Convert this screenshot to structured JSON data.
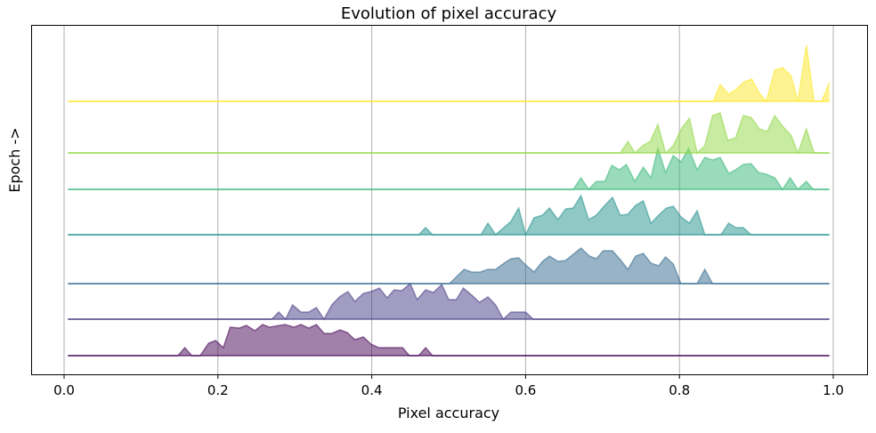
{
  "chart_data": {
    "type": "area",
    "subtype": "ridgeline",
    "title": "Evolution of pixel accuracy",
    "xlabel": "Pixel accuracy",
    "ylabel": "Epoch ->",
    "xlim": [
      -0.043,
      1.045
    ],
    "x_ticks": [
      "0.0",
      "0.2",
      "0.4",
      "0.6",
      "0.8",
      "1.0"
    ],
    "x_tick_values": [
      0,
      0.2,
      0.4,
      0.6,
      0.8,
      1.0
    ],
    "grid": "vertical",
    "y_ticks": "none",
    "colormap": "viridis",
    "fill_alpha": 0.5,
    "baseline_range": [
      0.005,
      0.995
    ],
    "series": [
      {
        "color": "#440154",
        "points": [
          [
            0.148,
            0
          ],
          [
            0.157,
            9
          ],
          [
            0.166,
            0
          ],
          [
            0.177,
            0
          ],
          [
            0.188,
            14
          ],
          [
            0.197,
            17
          ],
          [
            0.207,
            9
          ],
          [
            0.216,
            32
          ],
          [
            0.228,
            31
          ],
          [
            0.237,
            34
          ],
          [
            0.248,
            28
          ],
          [
            0.258,
            35
          ],
          [
            0.267,
            32
          ],
          [
            0.287,
            35
          ],
          [
            0.299,
            32
          ],
          [
            0.308,
            35
          ],
          [
            0.318,
            31
          ],
          [
            0.328,
            35
          ],
          [
            0.338,
            25
          ],
          [
            0.348,
            25
          ],
          [
            0.359,
            29
          ],
          [
            0.368,
            26
          ],
          [
            0.378,
            18
          ],
          [
            0.389,
            21
          ],
          [
            0.399,
            13
          ],
          [
            0.409,
            9
          ],
          [
            0.44,
            9
          ],
          [
            0.449,
            0
          ],
          [
            0.461,
            0
          ],
          [
            0.47,
            9
          ],
          [
            0.479,
            0
          ]
        ]
      },
      {
        "color": "#443983",
        "points": [
          [
            0.27,
            0
          ],
          [
            0.279,
            8
          ],
          [
            0.288,
            0
          ],
          [
            0.297,
            16
          ],
          [
            0.308,
            8
          ],
          [
            0.318,
            8
          ],
          [
            0.328,
            13
          ],
          [
            0.338,
            0
          ],
          [
            0.348,
            16
          ],
          [
            0.358,
            25
          ],
          [
            0.369,
            31
          ],
          [
            0.378,
            20
          ],
          [
            0.389,
            29
          ],
          [
            0.399,
            31
          ],
          [
            0.41,
            35
          ],
          [
            0.42,
            24
          ],
          [
            0.429,
            33
          ],
          [
            0.439,
            32
          ],
          [
            0.45,
            40
          ],
          [
            0.459,
            22
          ],
          [
            0.47,
            33
          ],
          [
            0.48,
            30
          ],
          [
            0.491,
            39
          ],
          [
            0.5,
            22
          ],
          [
            0.51,
            22
          ],
          [
            0.519,
            35
          ],
          [
            0.53,
            27
          ],
          [
            0.54,
            19
          ],
          [
            0.551,
            25
          ],
          [
            0.561,
            16
          ],
          [
            0.571,
            0
          ],
          [
            0.581,
            8
          ],
          [
            0.6,
            8
          ],
          [
            0.61,
            0
          ]
        ]
      },
      {
        "color": "#31688e",
        "points": [
          [
            0.501,
            0
          ],
          [
            0.52,
            16
          ],
          [
            0.53,
            13
          ],
          [
            0.541,
            13
          ],
          [
            0.551,
            16
          ],
          [
            0.561,
            16
          ],
          [
            0.572,
            23
          ],
          [
            0.581,
            28
          ],
          [
            0.591,
            29
          ],
          [
            0.6,
            21
          ],
          [
            0.611,
            13
          ],
          [
            0.622,
            25
          ],
          [
            0.631,
            31
          ],
          [
            0.642,
            25
          ],
          [
            0.652,
            26
          ],
          [
            0.662,
            33
          ],
          [
            0.672,
            40
          ],
          [
            0.683,
            31
          ],
          [
            0.692,
            28
          ],
          [
            0.701,
            37
          ],
          [
            0.713,
            37
          ],
          [
            0.723,
            27
          ],
          [
            0.733,
            16
          ],
          [
            0.743,
            31
          ],
          [
            0.753,
            34
          ],
          [
            0.763,
            23
          ],
          [
            0.773,
            20
          ],
          [
            0.782,
            30
          ],
          [
            0.792,
            22
          ],
          [
            0.802,
            0
          ],
          [
            0.823,
            0
          ],
          [
            0.833,
            16
          ],
          [
            0.843,
            0
          ]
        ]
      },
      {
        "color": "#21918c",
        "points": [
          [
            0.461,
            0
          ],
          [
            0.47,
            8
          ],
          [
            0.479,
            0
          ],
          [
            0.542,
            0
          ],
          [
            0.551,
            13
          ],
          [
            0.561,
            0
          ],
          [
            0.581,
            15
          ],
          [
            0.591,
            30
          ],
          [
            0.6,
            0
          ],
          [
            0.611,
            19
          ],
          [
            0.622,
            22
          ],
          [
            0.631,
            30
          ],
          [
            0.642,
            17
          ],
          [
            0.652,
            29
          ],
          [
            0.662,
            30
          ],
          [
            0.672,
            44
          ],
          [
            0.682,
            17
          ],
          [
            0.692,
            22
          ],
          [
            0.702,
            32
          ],
          [
            0.713,
            42
          ],
          [
            0.723,
            22
          ],
          [
            0.733,
            23
          ],
          [
            0.743,
            33
          ],
          [
            0.753,
            38
          ],
          [
            0.763,
            13
          ],
          [
            0.773,
            22
          ],
          [
            0.783,
            30
          ],
          [
            0.792,
            32
          ],
          [
            0.802,
            20
          ],
          [
            0.813,
            13
          ],
          [
            0.823,
            27
          ],
          [
            0.833,
            0
          ],
          [
            0.854,
            0
          ],
          [
            0.864,
            13
          ],
          [
            0.873,
            8
          ],
          [
            0.883,
            8
          ],
          [
            0.893,
            0
          ]
        ]
      },
      {
        "color": "#35b779",
        "points": [
          [
            0.662,
            0
          ],
          [
            0.672,
            13
          ],
          [
            0.682,
            0
          ],
          [
            0.692,
            9
          ],
          [
            0.703,
            9
          ],
          [
            0.712,
            27
          ],
          [
            0.722,
            22
          ],
          [
            0.731,
            28
          ],
          [
            0.742,
            9
          ],
          [
            0.753,
            25
          ],
          [
            0.763,
            13
          ],
          [
            0.772,
            46
          ],
          [
            0.782,
            19
          ],
          [
            0.792,
            38
          ],
          [
            0.802,
            31
          ],
          [
            0.812,
            46
          ],
          [
            0.823,
            22
          ],
          [
            0.833,
            36
          ],
          [
            0.843,
            33
          ],
          [
            0.853,
            36
          ],
          [
            0.864,
            18
          ],
          [
            0.873,
            22
          ],
          [
            0.883,
            28
          ],
          [
            0.893,
            29
          ],
          [
            0.903,
            19
          ],
          [
            0.913,
            17
          ],
          [
            0.924,
            13
          ],
          [
            0.934,
            0
          ],
          [
            0.944,
            13
          ],
          [
            0.954,
            0
          ],
          [
            0.965,
            9
          ],
          [
            0.974,
            0
          ]
        ]
      },
      {
        "color": "#90d743",
        "points": [
          [
            0.723,
            0
          ],
          [
            0.733,
            13
          ],
          [
            0.742,
            0
          ],
          [
            0.752,
            8
          ],
          [
            0.762,
            13
          ],
          [
            0.772,
            32
          ],
          [
            0.782,
            0
          ],
          [
            0.792,
            8
          ],
          [
            0.803,
            28
          ],
          [
            0.813,
            39
          ],
          [
            0.823,
            0
          ],
          [
            0.833,
            8
          ],
          [
            0.843,
            42
          ],
          [
            0.853,
            45
          ],
          [
            0.863,
            14
          ],
          [
            0.873,
            17
          ],
          [
            0.883,
            42
          ],
          [
            0.893,
            40
          ],
          [
            0.904,
            27
          ],
          [
            0.914,
            24
          ],
          [
            0.924,
            42
          ],
          [
            0.934,
            30
          ],
          [
            0.945,
            20
          ],
          [
            0.954,
            0
          ],
          [
            0.965,
            27
          ],
          [
            0.975,
            0
          ]
        ]
      },
      {
        "color": "#fde725",
        "points": [
          [
            0.844,
            0
          ],
          [
            0.853,
            19
          ],
          [
            0.864,
            8
          ],
          [
            0.873,
            13
          ],
          [
            0.884,
            22
          ],
          [
            0.894,
            25
          ],
          [
            0.904,
            9
          ],
          [
            0.913,
            0
          ],
          [
            0.924,
            35
          ],
          [
            0.934,
            38
          ],
          [
            0.945,
            29
          ],
          [
            0.954,
            0
          ],
          [
            0.965,
            63
          ],
          [
            0.975,
            0
          ],
          [
            0.985,
            0
          ],
          [
            0.995,
            21
          ]
        ]
      }
    ]
  }
}
